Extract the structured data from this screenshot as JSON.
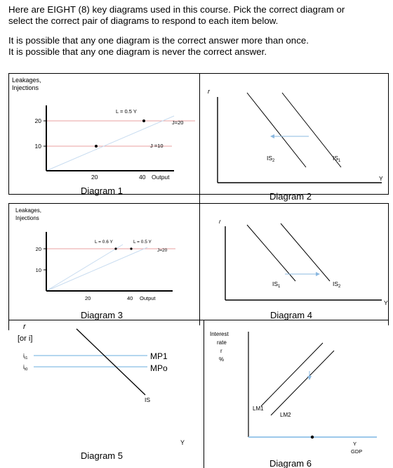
{
  "intro": {
    "line1": "Here are EIGHT (8) key diagrams used in this course.  Pick the correct diagram or",
    "line2": "select the correct pair of diagrams to respond to each item below.",
    "line3": "It is possible that any one diagram is the correct answer more than once.",
    "line4": "It is possible that any one diagram is never the correct answer."
  },
  "diagram1": {
    "ylabel1": "Leakages,",
    "ylabel2": "Injections",
    "ytick_high": "20",
    "ytick_low": "10",
    "xtick_low": "20",
    "xtick_high": "40",
    "xlabel": "Output",
    "leak_label": "L = 0.5 Y",
    "inj_high": "J=20",
    "inj_low": "J =10",
    "caption": "Diagram 1"
  },
  "diagram2": {
    "ylabel": "r",
    "xlabel": "Y",
    "curve_left": "IS",
    "curve_left_sub": "2",
    "curve_right": "IS",
    "curve_right_sub": "1",
    "caption": "Diagram 2"
  },
  "diagram3": {
    "ylabel1": "Leakages,",
    "ylabel2": "Injections",
    "ytick_high": "20",
    "ytick_low": "10",
    "xtick_low": "20",
    "xtick_high": "40",
    "xlabel": "Output",
    "leak_steep": "L = 0.6 Y",
    "leak_flat": "L = 0.5 Y",
    "inj": "J=20",
    "caption": "Diagram 3"
  },
  "diagram4": {
    "ylabel": "r",
    "xlabel": "Y",
    "curve_left": "IS",
    "curve_left_sub": "1",
    "curve_right": "IS",
    "curve_right_sub": "2",
    "caption": "Diagram 4"
  },
  "diagram5": {
    "ylabel1": "r",
    "ylabel2": "[or i]",
    "tick_high": "i",
    "tick_high_sub": "t1",
    "tick_low": "i",
    "tick_low_sub": "t0",
    "mp1": "MP1",
    "mp0": "MPo",
    "is": "IS",
    "xlabel": "Y",
    "caption": "Diagram 5"
  },
  "diagram6": {
    "ylabel1": "Interest",
    "ylabel2": "rate",
    "ylabel3": "r",
    "ylabel4": "%",
    "lm1": "LM1",
    "lm2": "LM2",
    "xlabel1": "Y",
    "xlabel2": "GDP",
    "caption": "Diagram 6"
  },
  "colors": {
    "red": "#e8a0a0",
    "blue": "#9cc8ea",
    "light": "#c8dcf0",
    "arrow": "#8bb8e0"
  }
}
